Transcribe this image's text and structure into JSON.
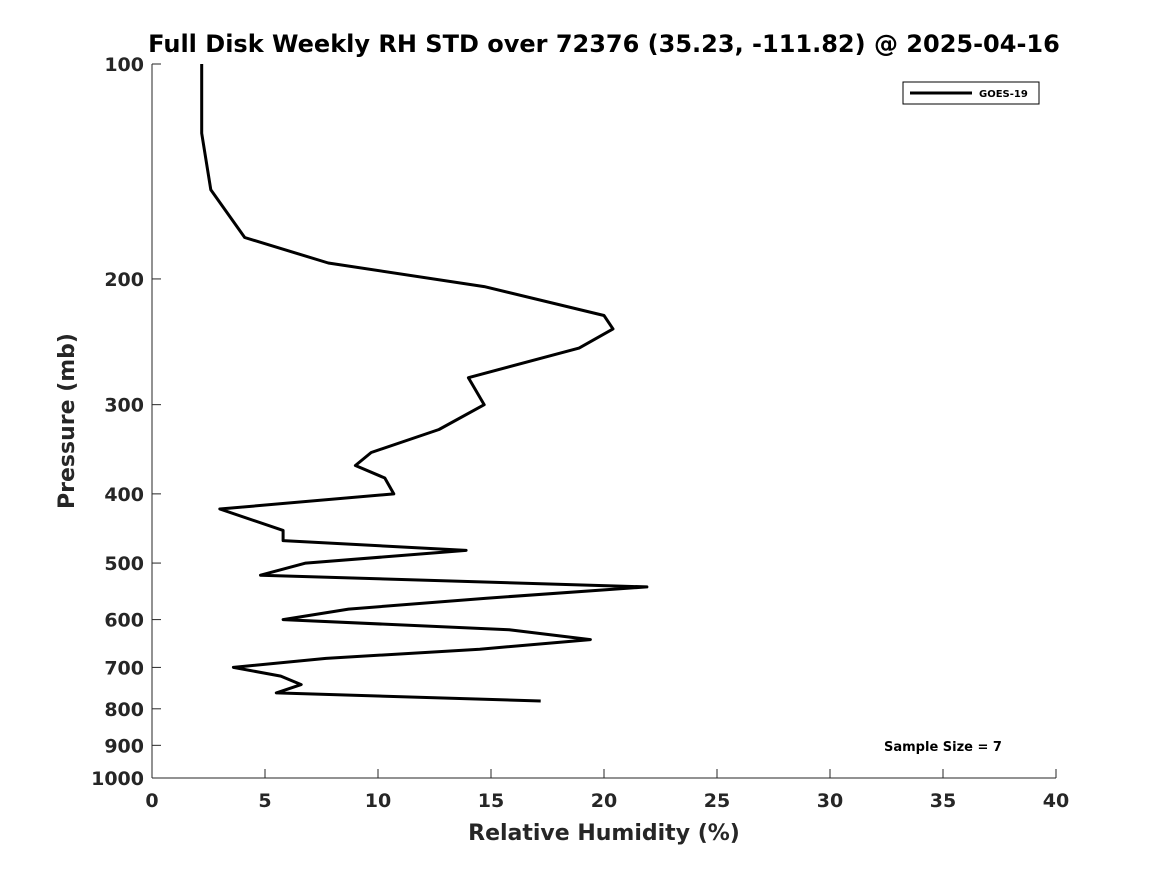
{
  "chart_data": {
    "type": "line",
    "title": "Full Disk Weekly RH STD over 72376 (35.23, -111.82) @ 2025-04-16",
    "xlabel": "Relative Humidity (%)",
    "ylabel": "Pressure (mb)",
    "xlim": [
      0,
      40
    ],
    "ylim": [
      100,
      1000
    ],
    "y_scale": "log",
    "y_reversed": true,
    "x_ticks": [
      0,
      5,
      10,
      15,
      20,
      25,
      30,
      35,
      40
    ],
    "x_tick_labels": [
      "0",
      "5",
      "10",
      "15",
      "20",
      "25",
      "30",
      "35",
      "40"
    ],
    "y_ticks": [
      100,
      200,
      300,
      400,
      500,
      600,
      700,
      800,
      900,
      1000
    ],
    "y_tick_labels": [
      "100",
      "200",
      "300",
      "400",
      "500",
      "600",
      "700",
      "800",
      "900",
      "1000"
    ],
    "grid": false,
    "legend_position": "top-right",
    "annotation": "Sample Size = 7",
    "series": [
      {
        "name": "GOES-19",
        "color": "#000000",
        "x": [
          2.2,
          2.2,
          2.2,
          2.6,
          4.1,
          7.8,
          14.7,
          20.0,
          20.4,
          18.9,
          14.0,
          14.7,
          12.7,
          9.7,
          9.0,
          10.3,
          10.7,
          3.0,
          5.8,
          5.8,
          13.9,
          6.8,
          4.8,
          21.9,
          14.8,
          8.7,
          5.8,
          15.8,
          19.4,
          14.5,
          7.7,
          3.6,
          5.7,
          6.6,
          5.5,
          17.2
        ],
        "y": [
          100,
          110,
          125,
          150,
          175,
          190,
          205,
          225,
          235,
          250,
          275,
          300,
          325,
          350,
          365,
          380,
          400,
          420,
          450,
          465,
          480,
          500,
          520,
          540,
          560,
          580,
          600,
          620,
          640,
          660,
          680,
          700,
          720,
          740,
          760,
          780
        ]
      }
    ]
  }
}
